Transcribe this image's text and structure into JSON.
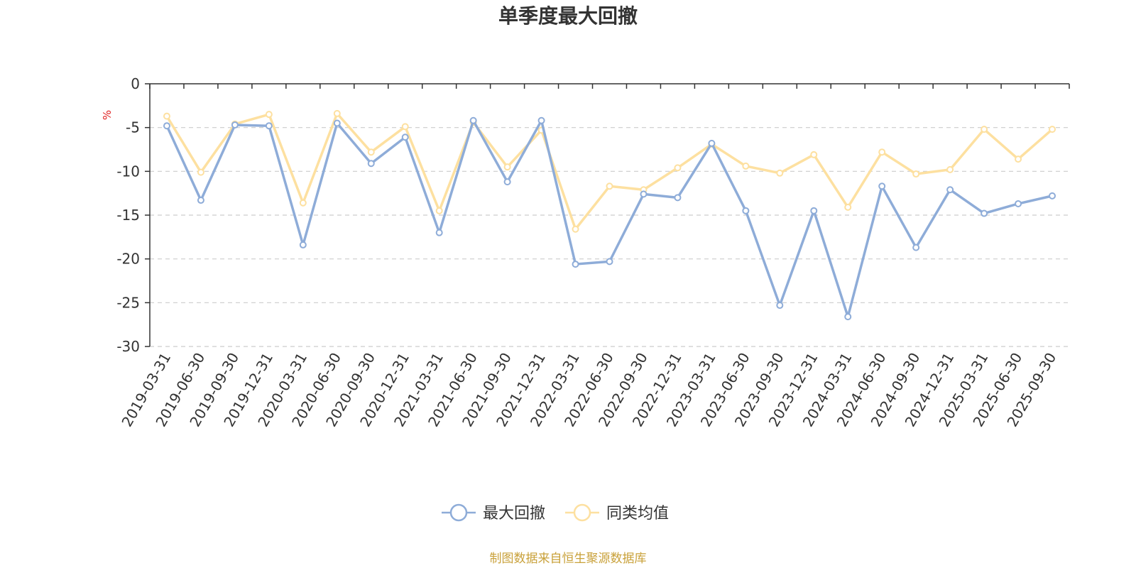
{
  "chart_data": {
    "type": "line",
    "title": "单季度最大回撤",
    "ylabel": "%",
    "ylim": [
      -30,
      0
    ],
    "yticks": [
      0,
      -5,
      -10,
      -15,
      -20,
      -25,
      -30
    ],
    "grid": true,
    "legend_position": "bottom",
    "categories": [
      "2019-03-31",
      "2019-06-30",
      "2019-09-30",
      "2019-12-31",
      "2020-03-31",
      "2020-06-30",
      "2020-09-30",
      "2020-12-31",
      "2021-03-31",
      "2021-06-30",
      "2021-09-30",
      "2021-12-31",
      "2022-03-31",
      "2022-06-30",
      "2022-09-30",
      "2022-12-31",
      "2023-03-31",
      "2023-06-30",
      "2023-09-30",
      "2023-12-31",
      "2024-03-31",
      "2024-06-30",
      "2024-09-30",
      "2024-12-31",
      "2025-03-31",
      "2025-06-30",
      "2025-09-30"
    ],
    "series": [
      {
        "name": "最大回撤",
        "color": "#8eacd8",
        "values": [
          -4.8,
          -13.3,
          -4.7,
          -4.8,
          -18.4,
          -4.5,
          -9.1,
          -6.1,
          -17.0,
          -4.2,
          -11.2,
          -4.2,
          -20.6,
          -20.3,
          -12.6,
          -13.0,
          -6.8,
          -14.5,
          -25.3,
          -14.5,
          -26.6,
          -11.7,
          -18.7,
          -12.1,
          -14.8,
          -13.7,
          -12.8
        ]
      },
      {
        "name": "同类均值",
        "color": "#fde0a0",
        "values": [
          -3.7,
          -10.1,
          -4.6,
          -3.5,
          -13.6,
          -3.4,
          -7.8,
          -4.9,
          -14.5,
          -4.4,
          -9.5,
          -5.3,
          -16.6,
          -11.7,
          -12.1,
          -9.6,
          -6.9,
          -9.4,
          -10.2,
          -8.1,
          -14.1,
          -7.8,
          -10.3,
          -9.8,
          -5.2,
          -8.6,
          -5.2
        ]
      }
    ]
  },
  "footer": {
    "source_text": "制图数据来自恒生聚源数据库",
    "source_color": "#c9a13a"
  },
  "colors": {
    "axis": "#333333",
    "grid": "#cccccc",
    "unit": "#e02020"
  }
}
